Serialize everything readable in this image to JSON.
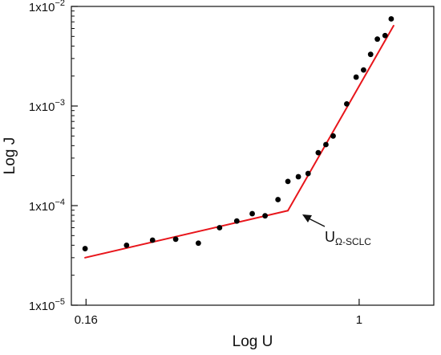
{
  "chart_data": {
    "type": "scatter",
    "xlabel": "Log U",
    "ylabel": "Log J",
    "x_scale": "log",
    "y_scale": "log",
    "xlim": [
      0.145,
      1.65
    ],
    "ylim": [
      1e-05,
      0.01
    ],
    "x_ticks": [
      {
        "value": 0.16,
        "label": "0.16"
      },
      {
        "value": 1,
        "label": "1"
      }
    ],
    "y_ticks": [
      {
        "value": 1e-05,
        "mantissa": "1x10",
        "exponent": "−5"
      },
      {
        "value": 0.0001,
        "mantissa": "1x10",
        "exponent": "−4"
      },
      {
        "value": 0.001,
        "mantissa": "1x10",
        "exponent": "−3"
      },
      {
        "value": 0.01,
        "mantissa": "1x10",
        "exponent": "−2"
      }
    ],
    "grid": false,
    "series": [
      {
        "kind": "points",
        "color": "#000000",
        "points": [
          [
            0.159,
            3.7e-05
          ],
          [
            0.21,
            4e-05
          ],
          [
            0.25,
            4.5e-05
          ],
          [
            0.292,
            4.6e-05
          ],
          [
            0.34,
            4.2e-05
          ],
          [
            0.392,
            6e-05
          ],
          [
            0.44,
            7e-05
          ],
          [
            0.488,
            8.3e-05
          ],
          [
            0.532,
            7.9e-05
          ],
          [
            0.58,
            0.000115
          ],
          [
            0.62,
            0.000175
          ],
          [
            0.665,
            0.000195
          ],
          [
            0.71,
            0.00021
          ],
          [
            0.76,
            0.00034
          ],
          [
            0.8,
            0.00041
          ],
          [
            0.84,
            0.0005
          ],
          [
            0.92,
            0.00105
          ],
          [
            0.98,
            0.00195
          ],
          [
            1.03,
            0.0023
          ],
          [
            1.08,
            0.0033
          ],
          [
            1.13,
            0.0047
          ],
          [
            1.19,
            0.0051
          ],
          [
            1.24,
            0.0075
          ]
        ]
      },
      {
        "kind": "fit-line",
        "color": "#e8151b",
        "segments": [
          [
            [
              0.159,
              3e-05
            ],
            [
              0.62,
              8.9e-05
            ]
          ],
          [
            [
              0.62,
              8.9e-05
            ],
            [
              1.26,
              0.0064
            ]
          ]
        ]
      }
    ],
    "annotations": [
      {
        "text_main": "U",
        "text_sub": "Ω-SCLC",
        "points_to": [
          0.62,
          8.9e-05
        ]
      }
    ]
  }
}
